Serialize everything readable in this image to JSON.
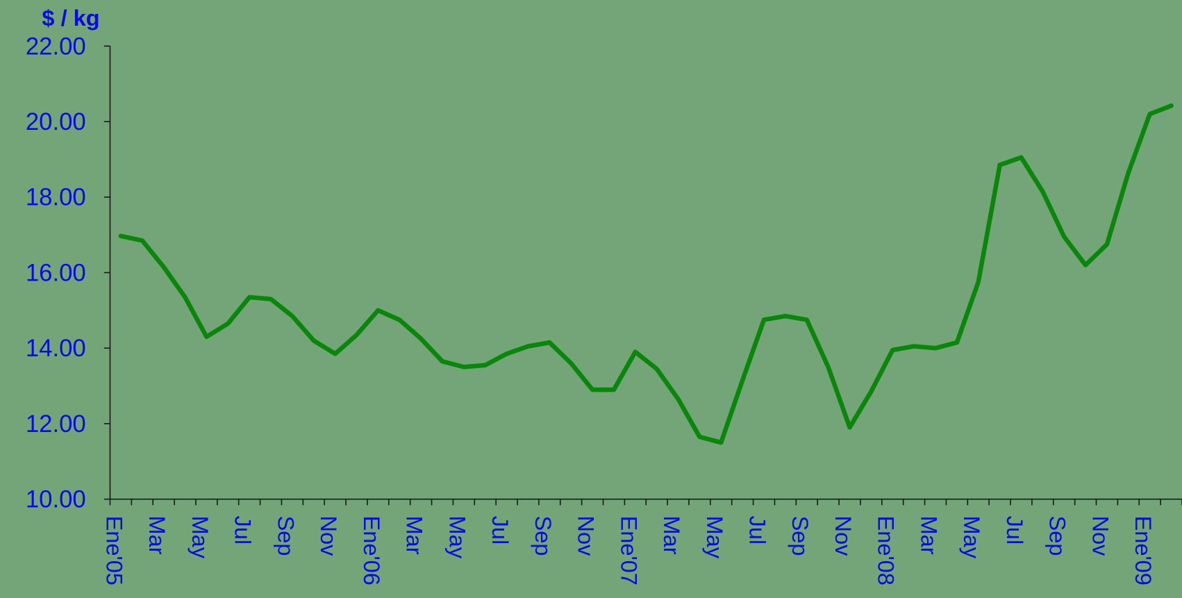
{
  "chart_data": {
    "type": "line",
    "y_label": "$ / kg",
    "color": "#0a870a",
    "categories": [
      "Ene'05",
      null,
      "Mar",
      null,
      "May",
      null,
      "Jul",
      null,
      "Sep",
      null,
      "Nov",
      null,
      "Ene'06",
      null,
      "Mar",
      null,
      "May",
      null,
      "Jul",
      null,
      "Sep",
      null,
      "Nov",
      null,
      "Ene'07",
      null,
      "Mar",
      null,
      "May",
      null,
      "Jul",
      null,
      "Sep",
      null,
      "Nov",
      null,
      "Ene'08",
      null,
      "Mar",
      null,
      "May",
      null,
      "Jul",
      null,
      "Sep",
      null,
      "Nov",
      null,
      "Ene'09",
      null
    ],
    "values": [
      16.97,
      16.85,
      16.15,
      15.35,
      14.3,
      14.65,
      15.35,
      15.3,
      14.85,
      14.2,
      13.85,
      14.35,
      15.0,
      14.75,
      14.25,
      13.65,
      13.5,
      13.55,
      13.85,
      14.05,
      14.15,
      13.6,
      12.9,
      12.9,
      13.9,
      13.45,
      12.65,
      11.65,
      11.5,
      13.15,
      14.75,
      14.85,
      14.75,
      13.5,
      11.9,
      12.85,
      13.95,
      14.05,
      14.0,
      14.15,
      15.75,
      18.85,
      19.05,
      18.15,
      16.95,
      16.2,
      16.75,
      18.65,
      20.2,
      20.42
    ],
    "ylim": [
      10,
      22
    ],
    "yticks": [
      {
        "value": 10,
        "label": "10.00"
      },
      {
        "value": 12,
        "label": "12.00"
      },
      {
        "value": 14,
        "label": "14.00"
      },
      {
        "value": 16,
        "label": "16.00"
      },
      {
        "value": 18,
        "label": "18.00"
      },
      {
        "value": 20,
        "label": "20.00"
      },
      {
        "value": 22,
        "label": "22.00"
      }
    ]
  }
}
